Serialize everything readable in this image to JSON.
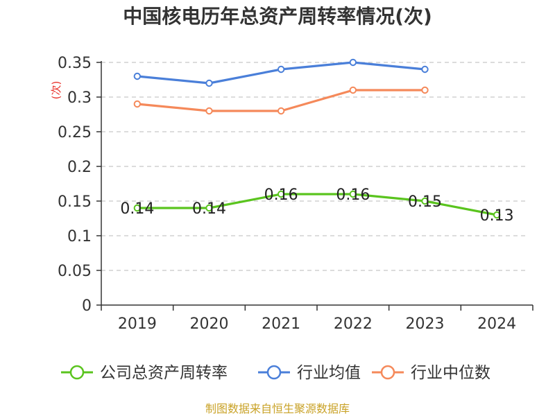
{
  "chart_data": {
    "type": "line",
    "title": "中国核电历年总资产周转率情况(次)",
    "xlabel": "",
    "ylabel": "(次)",
    "categories": [
      "2019",
      "2020",
      "2021",
      "2022",
      "2023",
      "2024"
    ],
    "ylim": [
      0,
      0.35
    ],
    "yticks": [
      "0",
      "0.05",
      "0.1",
      "0.15",
      "0.2",
      "0.25",
      "0.3",
      "0.35"
    ],
    "ytick_values": [
      0,
      0.05,
      0.1,
      0.15,
      0.2,
      0.25,
      0.3,
      0.35
    ],
    "grid": true,
    "legend_position": "bottom",
    "series": [
      {
        "name": "公司总资产周转率",
        "color": "#5ac41e",
        "values": [
          0.14,
          0.14,
          0.16,
          0.16,
          0.15,
          0.13
        ],
        "labels": [
          "0.14",
          "0.14",
          "0.16",
          "0.16",
          "0.15",
          "0.13"
        ]
      },
      {
        "name": "行业均值",
        "color": "#4a7fd9",
        "values": [
          0.33,
          0.32,
          0.34,
          0.35,
          0.34,
          null
        ]
      },
      {
        "name": "行业中位数",
        "color": "#f5895a",
        "values": [
          0.29,
          0.28,
          0.28,
          0.31,
          0.31,
          null
        ]
      }
    ],
    "source": "制图数据来自恒生聚源数据库"
  }
}
